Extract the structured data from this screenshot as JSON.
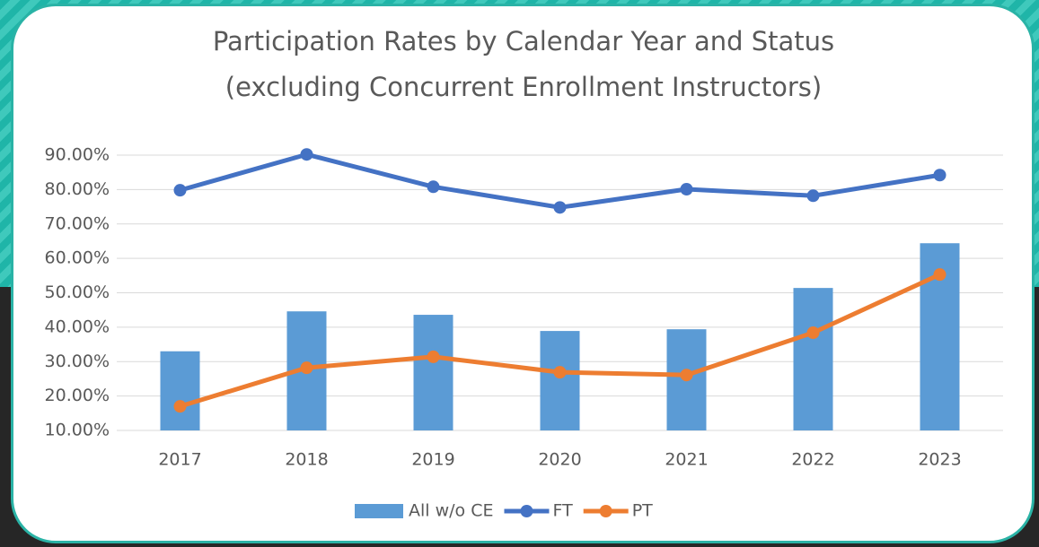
{
  "chart_data": {
    "type": "combo",
    "title": "Participation Rates by Calendar Year and Status",
    "subtitle": "(excluding Concurrent Enrollment Instructors)",
    "categories": [
      "2017",
      "2018",
      "2019",
      "2020",
      "2021",
      "2022",
      "2023"
    ],
    "series": [
      {
        "name": "All w/o CE",
        "type": "bar",
        "color": "#5b9bd5",
        "values": [
          33,
          44.6,
          43.6,
          38.9,
          39.4,
          51.4,
          64.4
        ]
      },
      {
        "name": "FT",
        "type": "line",
        "color": "#4472c4",
        "values": [
          79.8,
          90.2,
          80.8,
          74.8,
          80.1,
          78.2,
          84.2
        ]
      },
      {
        "name": "PT",
        "type": "line",
        "color": "#ed7d31",
        "values": [
          17,
          28.2,
          31.4,
          26.9,
          26.1,
          38.4,
          55.3
        ]
      }
    ],
    "ylim": [
      10,
      90
    ],
    "yticks": [
      {
        "value": 10,
        "label": "10.00%"
      },
      {
        "value": 20,
        "label": "20.00%"
      },
      {
        "value": 30,
        "label": "30.00%"
      },
      {
        "value": 40,
        "label": "40.00%"
      },
      {
        "value": 50,
        "label": "50.00%"
      },
      {
        "value": 60,
        "label": "60.00%"
      },
      {
        "value": 70,
        "label": "70.00%"
      },
      {
        "value": 80,
        "label": "80.00%"
      },
      {
        "value": 90,
        "label": "90.00%"
      }
    ],
    "grid": true,
    "legend": "bottom"
  }
}
